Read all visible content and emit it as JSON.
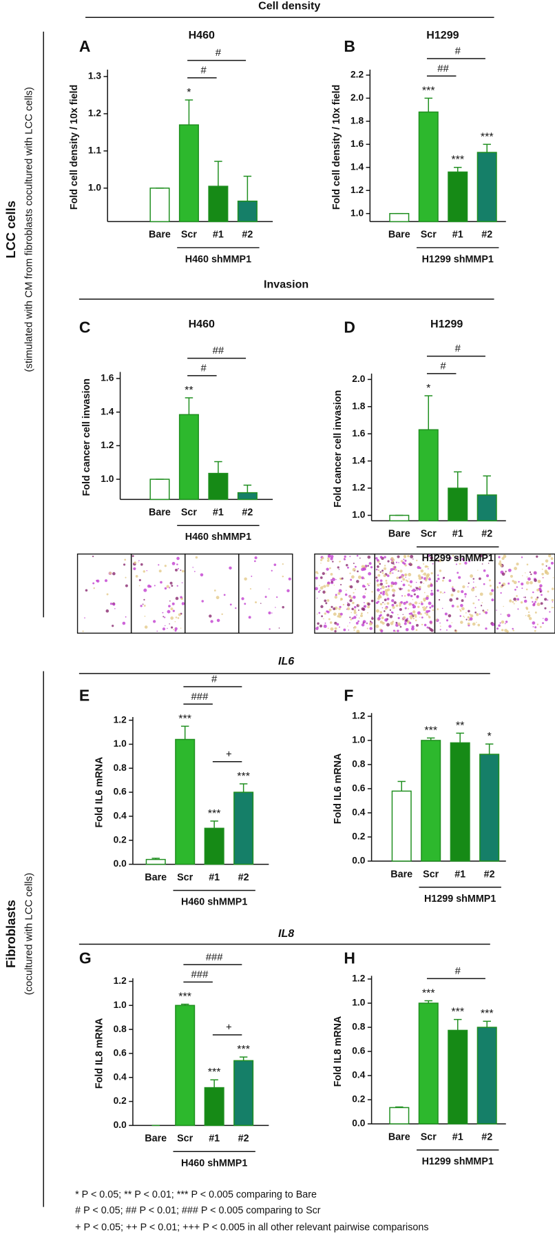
{
  "sections": [
    "Cell density",
    "Invasion",
    "IL6",
    "IL8"
  ],
  "side_labels": [
    {
      "title": "LCC cells",
      "subtitle": "(stimulated with CM from fibroblasts cocultured with LCC cells)"
    },
    {
      "title": "Fibroblasts",
      "subtitle": "(cocultured with LCC cells)"
    }
  ],
  "footnotes": [
    "* P < 0.05; ** P < 0.01; *** P < 0.005 comparing to Bare",
    "# P < 0.05; ## P < 0.01; ### P < 0.005 comparing to Scr",
    "+ P < 0.05; ++ P < 0.01; +++ P < 0.005 in all other relevant pairwise comparisons"
  ],
  "chart_data": [
    {
      "type": "bar",
      "panel": "A",
      "title": "H460",
      "ylabel": "Fold cell density / 10x field",
      "group_label": "H460 shMMP1",
      "categories": [
        "Bare",
        "Scr",
        "#1",
        "#2"
      ],
      "values": [
        1.0,
        1.17,
        1.005,
        0.965
      ],
      "errors": [
        0,
        0.067,
        0.067,
        0.067
      ],
      "colors": [
        "#ffffff",
        "#2db82d",
        "#168a16",
        "#157f68"
      ],
      "edge_color": "#1f8f1f",
      "ylim": [
        0.91,
        1.31
      ],
      "yticks": [
        {
          "value": 1.0,
          "label": "1.0"
        },
        1.1,
        1.2,
        1.3
      ],
      "significance": [
        null,
        "*",
        null,
        null
      ],
      "comparisons": [
        {
          "pair": [
            "Scr",
            "#1"
          ],
          "label": "#"
        },
        {
          "pair": [
            "Scr",
            "#2"
          ],
          "label": "#"
        }
      ]
    },
    {
      "type": "bar",
      "panel": "B",
      "title": "H1299",
      "ylabel": "Fold cell density / 10x field",
      "group_label": "H1299 shMMP1",
      "categories": [
        "Bare",
        "Scr",
        "#1",
        "#2"
      ],
      "values": [
        1.0,
        1.88,
        1.36,
        1.53
      ],
      "errors": [
        0,
        0.12,
        0.04,
        0.07
      ],
      "colors": [
        "#ffffff",
        "#2db82d",
        "#168a16",
        "#157f68"
      ],
      "edge_color": "#1f8f1f",
      "ylim": [
        0.93,
        2.22
      ],
      "yticks": [
        {
          "value": 1.0,
          "label": "1.0"
        },
        1.2,
        1.4,
        1.6,
        1.8,
        {
          "value": 2.0,
          "label": "2.0"
        },
        2.2
      ],
      "significance": [
        null,
        "***",
        "***",
        "***"
      ],
      "comparisons": [
        {
          "pair": [
            "Scr",
            "#1"
          ],
          "label": "##"
        },
        {
          "pair": [
            "Scr",
            "#2"
          ],
          "label": "#"
        }
      ]
    },
    {
      "type": "bar",
      "panel": "C",
      "title": "H460",
      "ylabel": "Fold cancer cell invasion",
      "group_label": "H460 shMMP1",
      "categories": [
        "Bare",
        "Scr",
        "#1",
        "#2"
      ],
      "values": [
        1.0,
        1.385,
        1.035,
        0.92
      ],
      "errors": [
        0,
        0.1,
        0.07,
        0.045
      ],
      "colors": [
        "#ffffff",
        "#2db82d",
        "#168a16",
        "#157f68"
      ],
      "edge_color": "#1f8f1f",
      "ylim": [
        0.88,
        1.62
      ],
      "yticks": [
        {
          "value": 1.0,
          "label": "1.0"
        },
        1.2,
        1.4,
        1.6
      ],
      "significance": [
        null,
        "**",
        null,
        null
      ],
      "comparisons": [
        {
          "pair": [
            "Scr",
            "#1"
          ],
          "label": "#"
        },
        {
          "pair": [
            "Scr",
            "#2"
          ],
          "label": "##"
        }
      ]
    },
    {
      "type": "bar",
      "panel": "D",
      "title": "H1299",
      "ylabel": "Fold cancer cell invasion",
      "group_label": "H1299 shMMP1",
      "categories": [
        "Bare",
        "Scr",
        "#1",
        "#2"
      ],
      "values": [
        1.0,
        1.63,
        1.2,
        1.15
      ],
      "errors": [
        0,
        0.25,
        0.12,
        0.14
      ],
      "colors": [
        "#ffffff",
        "#2db82d",
        "#168a16",
        "#157f68"
      ],
      "edge_color": "#1f8f1f",
      "ylim": [
        0.96,
        2.02
      ],
      "yticks": [
        {
          "value": 1.0,
          "label": "1.0"
        },
        1.2,
        1.4,
        1.6,
        1.8,
        {
          "value": 2.0,
          "label": "2.0"
        }
      ],
      "significance": [
        null,
        "*",
        null,
        null
      ],
      "comparisons": [
        {
          "pair": [
            "Scr",
            "#1"
          ],
          "label": "#"
        },
        {
          "pair": [
            "Scr",
            "#2"
          ],
          "label": "#"
        }
      ]
    },
    {
      "type": "bar",
      "panel": "E",
      "ylabel": "Fold IL6 mRNA",
      "group_label": "H460 shMMP1",
      "categories": [
        "Bare",
        "Scr",
        "#1",
        "#2"
      ],
      "values": [
        0.04,
        1.04,
        0.3,
        0.6
      ],
      "errors": [
        0.01,
        0.11,
        0.06,
        0.07
      ],
      "colors": [
        "#ffffff",
        "#2db82d",
        "#168a16",
        "#157f68"
      ],
      "edge_color": "#1f8f1f",
      "ylim": [
        0,
        1.2
      ],
      "yticks": [
        {
          "value": 0,
          "label": "0.0"
        },
        0.2,
        0.4,
        0.6,
        0.8,
        {
          "value": 1.0,
          "label": "1.0"
        },
        1.2
      ],
      "significance": [
        null,
        "***",
        "***",
        "***"
      ],
      "comparisons": [
        {
          "pair": [
            "#1",
            "#2"
          ],
          "label": "+"
        },
        {
          "pair": [
            "Scr",
            "#1"
          ],
          "label": "###"
        },
        {
          "pair": [
            "Scr",
            "#2"
          ],
          "label": "#"
        }
      ]
    },
    {
      "type": "bar",
      "panel": "F",
      "ylabel": "Fold IL6 mRNA",
      "group_label": "H1299 shMMP1",
      "categories": [
        "Bare",
        "Scr",
        "#1",
        "#2"
      ],
      "values": [
        0.58,
        1.0,
        0.98,
        0.885
      ],
      "errors": [
        0.08,
        0.02,
        0.08,
        0.085
      ],
      "colors": [
        "#ffffff",
        "#2db82d",
        "#168a16",
        "#157f68"
      ],
      "edge_color": "#1f8f1f",
      "ylim": [
        0,
        1.2
      ],
      "yticks": [
        {
          "value": 0,
          "label": "0.0"
        },
        0.2,
        0.4,
        0.6,
        0.8,
        {
          "value": 1.0,
          "label": "1.0"
        },
        1.2
      ],
      "significance": [
        null,
        "***",
        "**",
        "*"
      ]
    },
    {
      "type": "bar",
      "panel": "G",
      "ylabel": "Fold IL8 mRNA",
      "group_label": "H460 shMMP1",
      "categories": [
        "Bare",
        "Scr",
        "#1",
        "#2"
      ],
      "values": [
        0,
        1.0,
        0.315,
        0.54
      ],
      "errors": [
        0,
        0.01,
        0.065,
        0.03
      ],
      "colors": [
        "#ffffff",
        "#2db82d",
        "#168a16",
        "#157f68"
      ],
      "edge_color": "#1f8f1f",
      "ylim": [
        0,
        1.2
      ],
      "yticks": [
        {
          "value": 0,
          "label": "0.0"
        },
        0.2,
        0.4,
        0.6,
        0.8,
        {
          "value": 1.0,
          "label": "1.0"
        },
        1.2
      ],
      "significance": [
        null,
        "***",
        "***",
        "***"
      ],
      "comparisons": [
        {
          "pair": [
            "#1",
            "#2"
          ],
          "label": "+"
        },
        {
          "pair": [
            "Scr",
            "#1"
          ],
          "label": "###"
        },
        {
          "pair": [
            "Scr",
            "#2"
          ],
          "label": "###"
        }
      ]
    },
    {
      "type": "bar",
      "panel": "H",
      "ylabel": "Fold IL8 mRNA",
      "group_label": "H1299 shMMP1",
      "categories": [
        "Bare",
        "Scr",
        "#1",
        "#2"
      ],
      "values": [
        0.135,
        1.0,
        0.775,
        0.8
      ],
      "errors": [
        0.005,
        0.02,
        0.09,
        0.05
      ],
      "colors": [
        "#ffffff",
        "#2db82d",
        "#168a16",
        "#157f68"
      ],
      "edge_color": "#1f8f1f",
      "ylim": [
        0,
        1.2
      ],
      "yticks": [
        {
          "value": 0,
          "label": "0.0"
        },
        0.2,
        0.4,
        0.6,
        0.8,
        {
          "value": 1.0,
          "label": "1.0"
        },
        1.2
      ],
      "significance": [
        null,
        "***",
        "***",
        "***"
      ],
      "comparisons": [
        {
          "pair": [
            "Scr",
            "#2"
          ],
          "label": "#"
        }
      ]
    }
  ]
}
